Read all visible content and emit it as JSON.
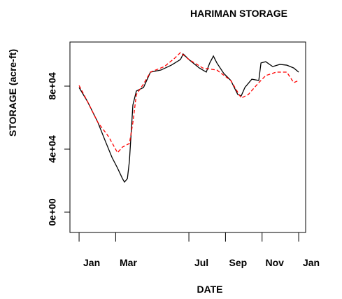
{
  "chart_data": {
    "type": "line",
    "title": "HARIMAN STORAGE",
    "xlabel": "DATE",
    "ylabel": "STORAGE (acre-ft)",
    "series": [
      {
        "color": "#000000",
        "dash": "solid",
        "x": [
          0,
          0.46,
          1.03,
          1.41,
          1.8,
          2.1,
          2.37,
          2.48,
          2.64,
          2.75,
          2.94,
          3.13,
          3.52,
          3.9,
          4.47,
          5.04,
          5.54,
          5.69,
          6.0,
          6.57,
          6.95,
          7.14,
          7.34,
          7.53,
          7.91,
          8.29,
          8.67,
          8.86,
          9.06,
          9.44,
          9.82,
          9.94,
          10.2,
          10.58,
          10.97,
          11.35,
          11.73,
          12.0
        ],
        "values": [
          79100,
          70200,
          56900,
          45800,
          34700,
          28000,
          21300,
          19100,
          21300,
          32400,
          68000,
          76900,
          79100,
          88900,
          90200,
          93300,
          96900,
          100400,
          96900,
          91500,
          88900,
          94700,
          99100,
          94700,
          88000,
          83600,
          74700,
          73800,
          79100,
          84400,
          83600,
          94700,
          95500,
          92400,
          93800,
          93300,
          91500,
          88900
        ]
      },
      {
        "color": "#ff0000",
        "dash": "dashed",
        "x": [
          0,
          0.46,
          1.03,
          1.61,
          2.1,
          2.37,
          2.75,
          2.94,
          3.13,
          3.52,
          3.9,
          4.66,
          5.23,
          5.54,
          6.0,
          6.76,
          7.53,
          8.29,
          8.86,
          9.25,
          9.82,
          10.2,
          10.78,
          11.35,
          11.73,
          12.0
        ],
        "values": [
          80400,
          70200,
          56900,
          48000,
          37800,
          41300,
          43600,
          56900,
          74700,
          81300,
          88900,
          92400,
          97800,
          101300,
          96900,
          91500,
          90200,
          83600,
          72400,
          74700,
          82200,
          86700,
          88900,
          88900,
          82200,
          83600
        ]
      }
    ],
    "xlim": [
      -0.5,
      12.38
    ],
    "ylim": [
      -12900,
      108000
    ],
    "xticks": [
      {
        "value": 0,
        "label": "Jan"
      },
      {
        "value": 2,
        "label": "Mar"
      },
      {
        "value": 6,
        "label": "Jul"
      },
      {
        "value": 8,
        "label": "Sep"
      },
      {
        "value": 10,
        "label": "Nov"
      },
      {
        "value": 12,
        "label": "Jan"
      }
    ],
    "yticks": [
      {
        "value": 0,
        "label": "0e+00"
      },
      {
        "value": 40000,
        "label": "4e+04"
      },
      {
        "value": 80000,
        "label": "8e+04"
      }
    ]
  }
}
